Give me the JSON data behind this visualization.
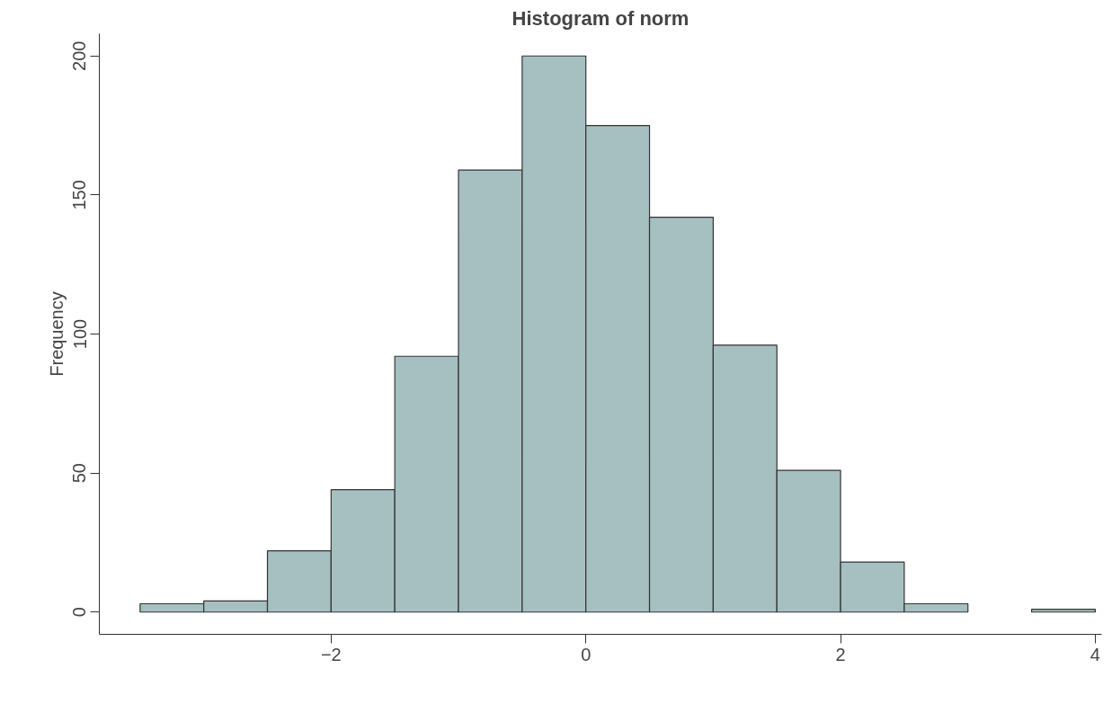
{
  "chart_data": {
    "type": "histogram",
    "title": "Histogram of norm",
    "ylabel": "Frequency",
    "bins": [
      -3.5,
      -3,
      -2.5,
      -2,
      -1.5,
      -1,
      -0.5,
      0,
      0.5,
      1,
      1.5,
      2,
      2.5,
      3,
      3.5,
      4
    ],
    "values": [
      3,
      4,
      22,
      44,
      92,
      159,
      200,
      175,
      142,
      96,
      51,
      18,
      3,
      0,
      1
    ],
    "color": "#a6c0c2",
    "xlim": [
      -3.82,
      4.05
    ],
    "ylim": [
      -8,
      208
    ],
    "xticks": [
      -2,
      0,
      2,
      4
    ],
    "yticks": [
      0,
      50,
      100,
      150,
      200
    ],
    "grid": false
  }
}
